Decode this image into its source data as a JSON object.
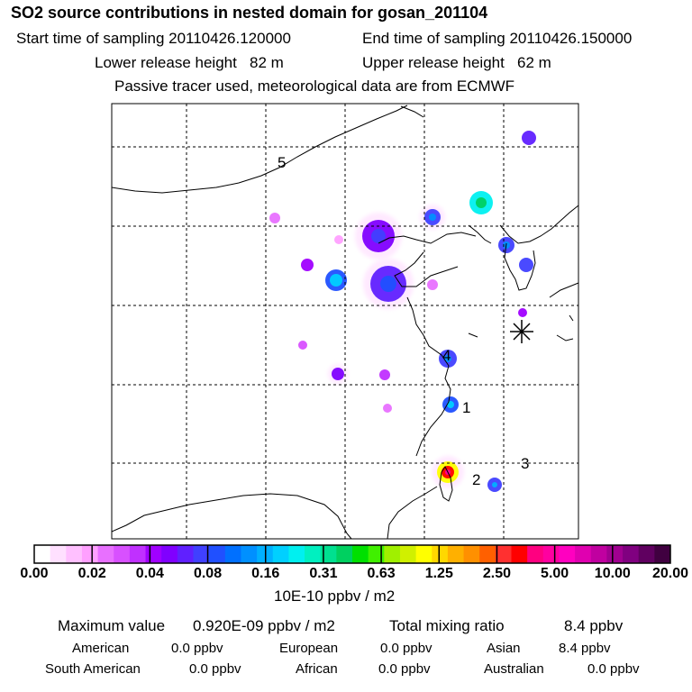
{
  "title": "SO2 source contributions in nested domain for gosan_201104",
  "sampling": {
    "start": "Start time of sampling 20110426.120000",
    "end": "End time of sampling 20110426.150000"
  },
  "release": {
    "lower": "Lower release height   82 m",
    "upper": "Upper release height   62 m"
  },
  "note": "Passive tracer used, meteorological data are from ECMWF",
  "chart_data": {
    "type": "heatmap",
    "title": "SO2 source contributions in nested domain for gosan_201104",
    "colorbar": {
      "ticks": [
        "0.00",
        "0.02",
        "0.04",
        "0.08",
        "0.16",
        "0.31",
        "0.63",
        "1.25",
        "2.50",
        "5.00",
        "10.00",
        "20.00"
      ],
      "unit": "10E-10 ppbv / m2",
      "colors": [
        "#ffffff",
        "#ffe0ff",
        "#ffc0ff",
        "#ffa0ff",
        "#e870ff",
        "#d850ff",
        "#c030ff",
        "#a000ff",
        "#8000ff",
        "#6020ff",
        "#4040ff",
        "#2050ff",
        "#0070ff",
        "#0090ff",
        "#00b0ff",
        "#00d0ff",
        "#00f0f0",
        "#00f0c0",
        "#00e090",
        "#00d060",
        "#00e000",
        "#40f000",
        "#a0f000",
        "#d0f000",
        "#ffff00",
        "#ffd800",
        "#ffb000",
        "#ff9000",
        "#ff6000",
        "#ff3030",
        "#ff0000",
        "#ff0080",
        "#ff00a0",
        "#ff00c0",
        "#e000b0",
        "#c000a0",
        "#a00090",
        "#800080",
        "#600060",
        "#400040"
      ]
    },
    "markers": [
      {
        "label": "1"
      },
      {
        "label": "2"
      },
      {
        "label": "3"
      },
      {
        "label": "4"
      },
      {
        "label": "5"
      }
    ]
  },
  "summary": {
    "max_label": "Maximum value",
    "max_value": "0.920E-09 ppbv / m2",
    "total_label": "Total mixing ratio",
    "total_value": "8.4 ppbv"
  },
  "sources": [
    {
      "name": "American",
      "value": "0.0 ppbv"
    },
    {
      "name": "European",
      "value": "0.0 ppbv"
    },
    {
      "name": "Asian",
      "value": "8.4 ppbv"
    },
    {
      "name": "South American",
      "value": "0.0 ppbv"
    },
    {
      "name": "African",
      "value": "0.0 ppbv"
    },
    {
      "name": "Australian",
      "value": "0.0 ppbv"
    }
  ]
}
